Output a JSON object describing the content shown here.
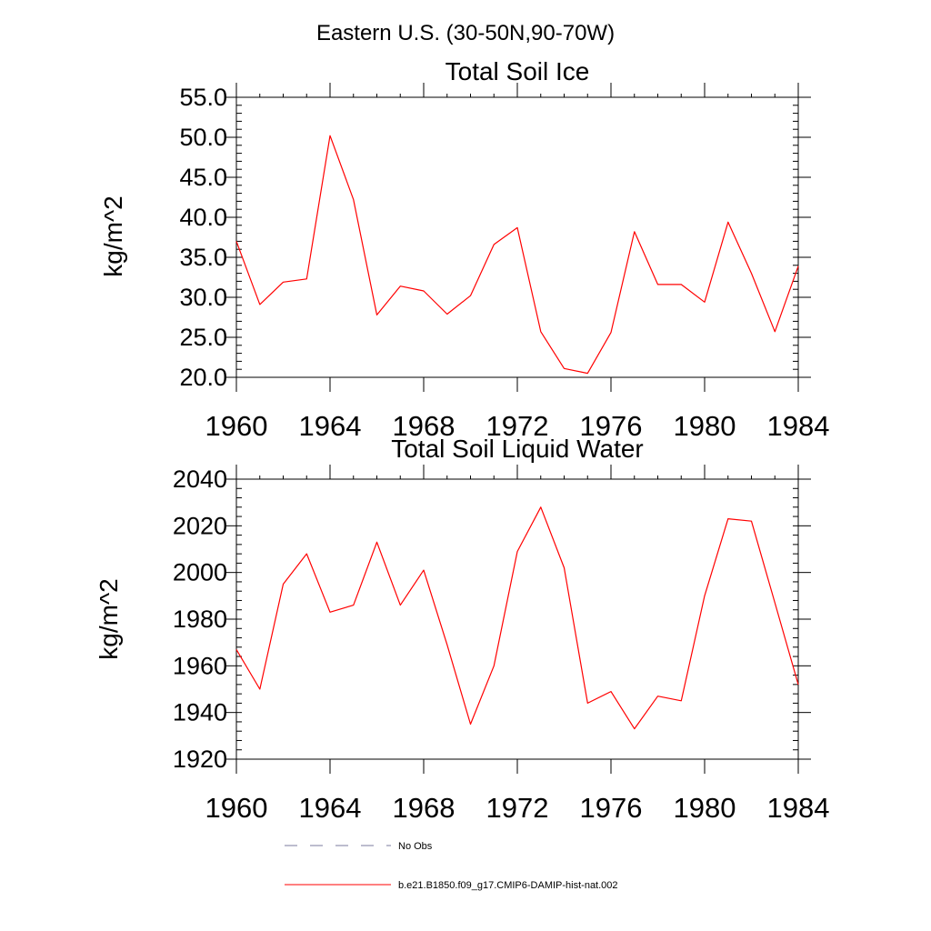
{
  "suptitle": "Eastern U.S. (30-50N,90-70W)",
  "chart_data": [
    {
      "type": "line",
      "title": "Total Soil Ice",
      "xlabel": "",
      "ylabel": "kg/m^2",
      "xlim": [
        1960,
        1984
      ],
      "ylim": [
        20,
        55
      ],
      "xticks": [
        1960,
        1964,
        1968,
        1972,
        1976,
        1980,
        1984
      ],
      "xtick_labels": [
        "1960",
        "1964",
        "1968",
        "1972",
        "1976",
        "1980",
        "1984"
      ],
      "yticks": [
        20,
        25,
        30,
        35,
        40,
        45,
        50,
        55
      ],
      "ytick_labels": [
        "20.0",
        "25.0",
        "30.0",
        "35.0",
        "40.0",
        "45.0",
        "50.0",
        "55.0"
      ],
      "y_minor_step": 1,
      "grid": false,
      "x": [
        1960,
        1961,
        1962,
        1963,
        1964,
        1965,
        1966,
        1967,
        1968,
        1969,
        1970,
        1971,
        1972,
        1973,
        1974,
        1975,
        1976,
        1977,
        1978,
        1979,
        1980,
        1981,
        1982,
        1983,
        1984
      ],
      "series": [
        {
          "name": "b.e21.B1850.f09_g17.CMIP6-DAMIP-hist-nat.002",
          "color": "#ff0000",
          "values": [
            37.0,
            29.1,
            31.9,
            32.3,
            50.2,
            42.2,
            27.8,
            31.4,
            30.8,
            27.9,
            30.2,
            36.6,
            38.7,
            25.7,
            21.1,
            20.5,
            25.6,
            38.2,
            31.6,
            31.6,
            29.4,
            39.4,
            33.0,
            25.7,
            33.9
          ]
        }
      ]
    },
    {
      "type": "line",
      "title": "Total Soil Liquid Water",
      "xlabel": "",
      "ylabel": "kg/m^2",
      "xlim": [
        1960,
        1984
      ],
      "ylim": [
        1920,
        2040
      ],
      "xticks": [
        1960,
        1964,
        1968,
        1972,
        1976,
        1980,
        1984
      ],
      "xtick_labels": [
        "1960",
        "1964",
        "1968",
        "1972",
        "1976",
        "1980",
        "1984"
      ],
      "yticks": [
        1920,
        1940,
        1960,
        1980,
        2000,
        2020,
        2040
      ],
      "ytick_labels": [
        "1920",
        "1940",
        "1960",
        "1980",
        "2000",
        "2020",
        "2040"
      ],
      "y_minor_step": 4,
      "grid": false,
      "x": [
        1960,
        1961,
        1962,
        1963,
        1964,
        1965,
        1966,
        1967,
        1968,
        1969,
        1970,
        1971,
        1972,
        1973,
        1974,
        1975,
        1976,
        1977,
        1978,
        1979,
        1980,
        1981,
        1982,
        1983,
        1984
      ],
      "series": [
        {
          "name": "b.e21.B1850.f09_g17.CMIP6-DAMIP-hist-nat.002",
          "color": "#ff0000",
          "values": [
            1967,
            1950,
            1995,
            2008,
            1983,
            1986,
            2013,
            1986,
            2001,
            1969,
            1935,
            1960,
            2009,
            2028,
            2002,
            1944,
            1949,
            1933,
            1947,
            1945,
            1990,
            2023,
            2022,
            1987,
            1952
          ]
        }
      ]
    }
  ],
  "legend": [
    {
      "label": "No Obs",
      "style": "dashed",
      "color": "#7b7b9e"
    },
    {
      "label": "b.e21.B1850.f09_g17.CMIP6-DAMIP-hist-nat.002",
      "style": "solid",
      "color": "#ff0000"
    }
  ]
}
